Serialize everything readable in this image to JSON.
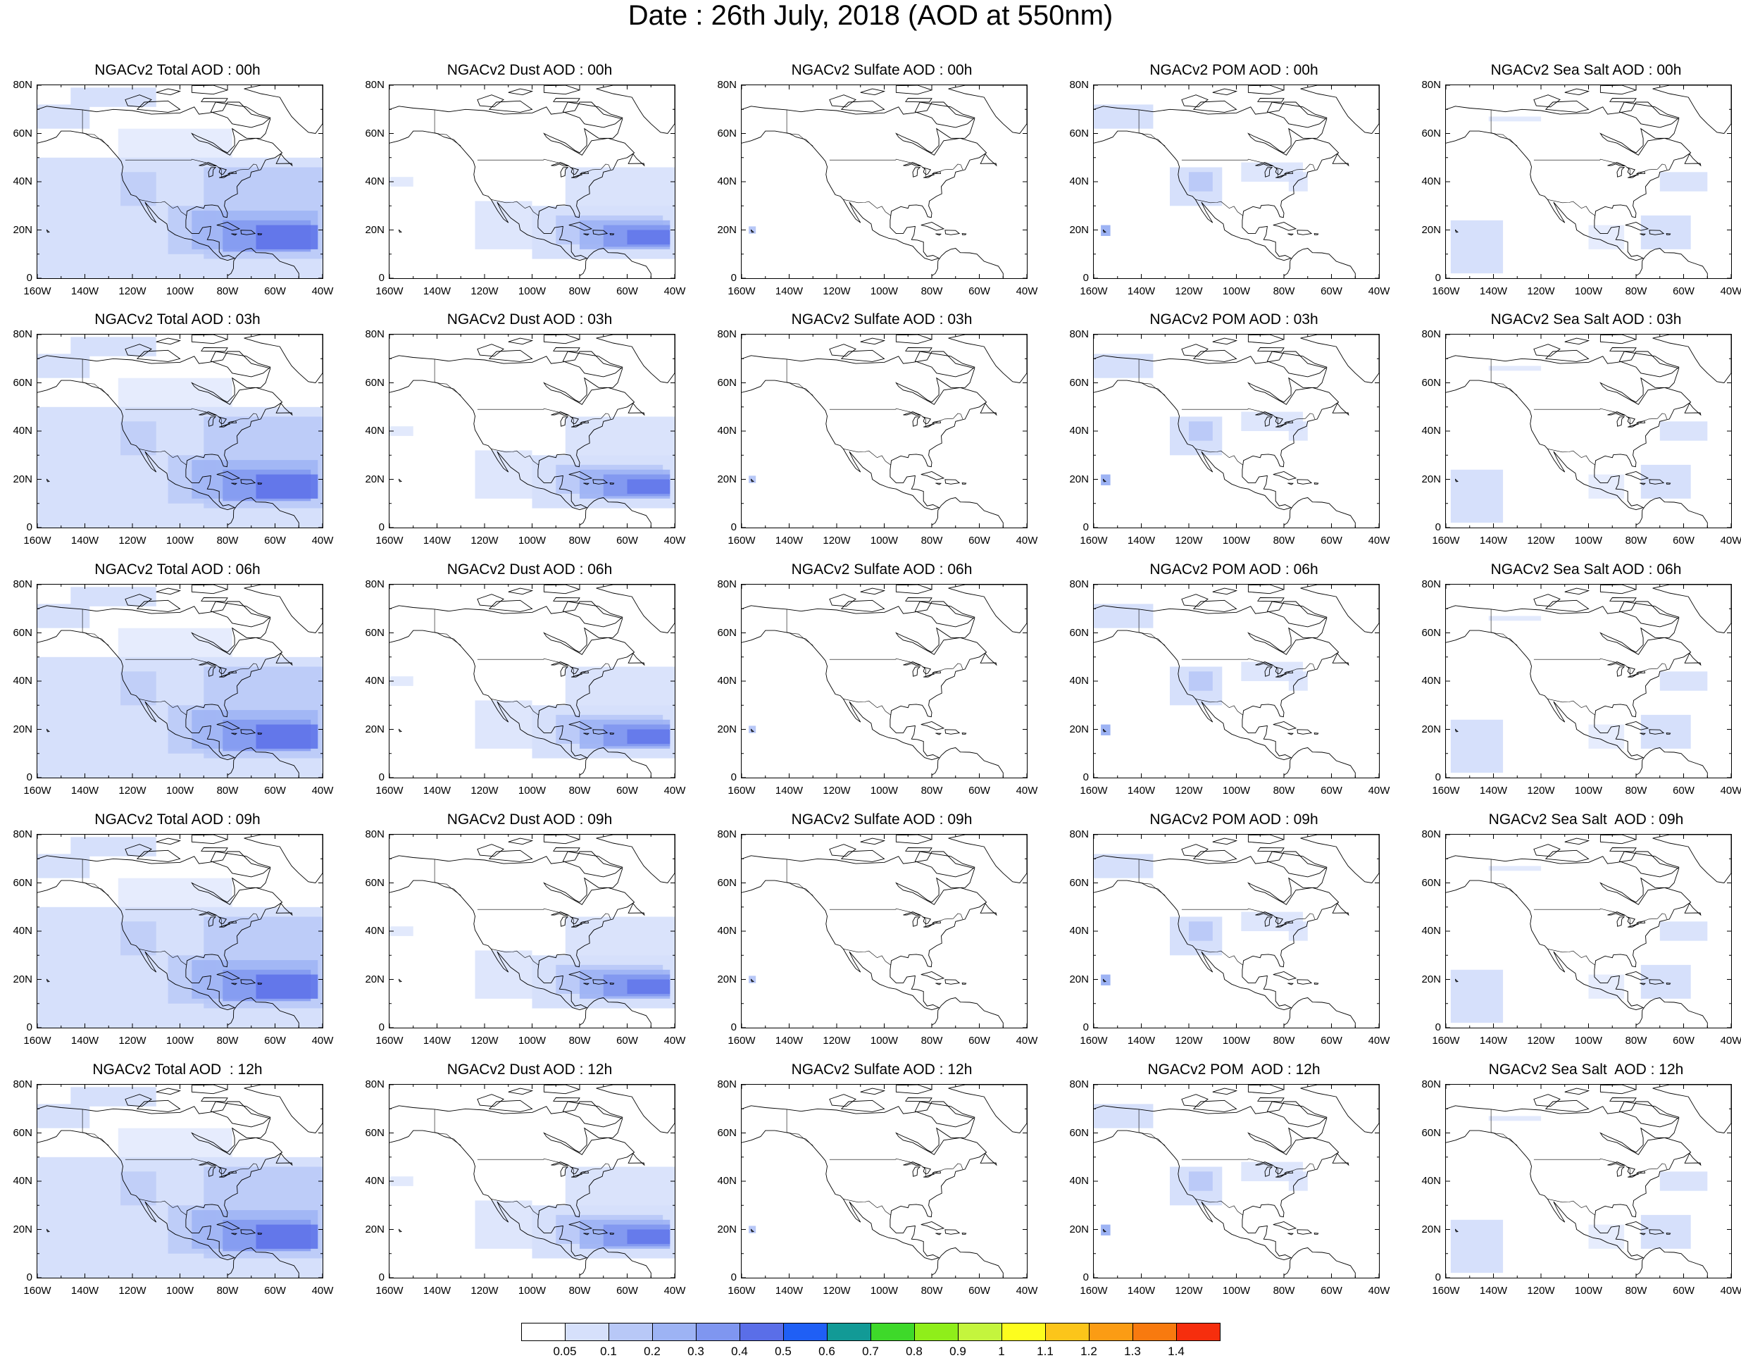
{
  "title": "Date : 26th July, 2018 (AOD at 550nm)",
  "panels": [
    {
      "title": "NGACv2 Total AOD : 00h",
      "species": "total"
    },
    {
      "title": "NGACv2 Dust AOD : 00h",
      "species": "dust"
    },
    {
      "title": "NGACv2 Sulfate AOD : 00h",
      "species": "sulfate"
    },
    {
      "title": "NGACv2 POM AOD : 00h",
      "species": "pom"
    },
    {
      "title": "NGACv2 Sea Salt AOD : 00h",
      "species": "seasalt"
    },
    {
      "title": "NGACv2 Total AOD : 03h",
      "species": "total"
    },
    {
      "title": "NGACv2 Dust AOD : 03h",
      "species": "dust"
    },
    {
      "title": "NGACv2 Sulfate AOD : 03h",
      "species": "sulfate"
    },
    {
      "title": "NGACv2 POM AOD : 03h",
      "species": "pom"
    },
    {
      "title": "NGACv2 Sea Salt AOD : 03h",
      "species": "seasalt"
    },
    {
      "title": "NGACv2 Total AOD : 06h",
      "species": "total"
    },
    {
      "title": "NGACv2 Dust AOD : 06h",
      "species": "dust"
    },
    {
      "title": "NGACv2 Sulfate AOD : 06h",
      "species": "sulfate"
    },
    {
      "title": "NGACv2 POM AOD : 06h",
      "species": "pom"
    },
    {
      "title": "NGACv2 Sea Salt AOD : 06h",
      "species": "seasalt"
    },
    {
      "title": "NGACv2 Total AOD : 09h",
      "species": "total"
    },
    {
      "title": "NGACv2 Dust AOD : 09h",
      "species": "dust"
    },
    {
      "title": "NGACv2 Sulfate AOD : 09h",
      "species": "sulfate"
    },
    {
      "title": "NGACv2 POM AOD : 09h",
      "species": "pom"
    },
    {
      "title": "NGACv2 Sea Salt  AOD : 09h",
      "species": "seasalt"
    },
    {
      "title": "NGACv2 Total AOD  : 12h",
      "species": "total"
    },
    {
      "title": "NGACv2 Dust AOD : 12h",
      "species": "dust"
    },
    {
      "title": "NGACv2 Sulfate AOD : 12h",
      "species": "sulfate"
    },
    {
      "title": "NGACv2 POM  AOD : 12h",
      "species": "pom"
    },
    {
      "title": "NGACv2 Sea Salt  AOD : 12h",
      "species": "seasalt"
    }
  ],
  "axes": {
    "lat_labels": [
      "80N",
      "60N",
      "40N",
      "20N",
      "0"
    ],
    "lon_labels": [
      "160W",
      "140W",
      "120W",
      "100W",
      "80W",
      "60W",
      "40W"
    ]
  },
  "colorbar": {
    "labels": [
      "0.05",
      "0.1",
      "0.2",
      "0.3",
      "0.4",
      "0.5",
      "0.6",
      "0.7",
      "0.8",
      "0.9",
      "1",
      "1.1",
      "1.2",
      "1.3",
      "1.4"
    ],
    "colors": [
      "#ffffff",
      "#d6e0fb",
      "#b8c8f7",
      "#9db3f4",
      "#7f96f0",
      "#5a6ee8",
      "#1f5ff5",
      "#129a96",
      "#3ed92a",
      "#8fee1a",
      "#c4f53d",
      "#fdfd1e",
      "#fcc51a",
      "#fb9c14",
      "#f87a0f",
      "#f62e0d"
    ]
  }
}
